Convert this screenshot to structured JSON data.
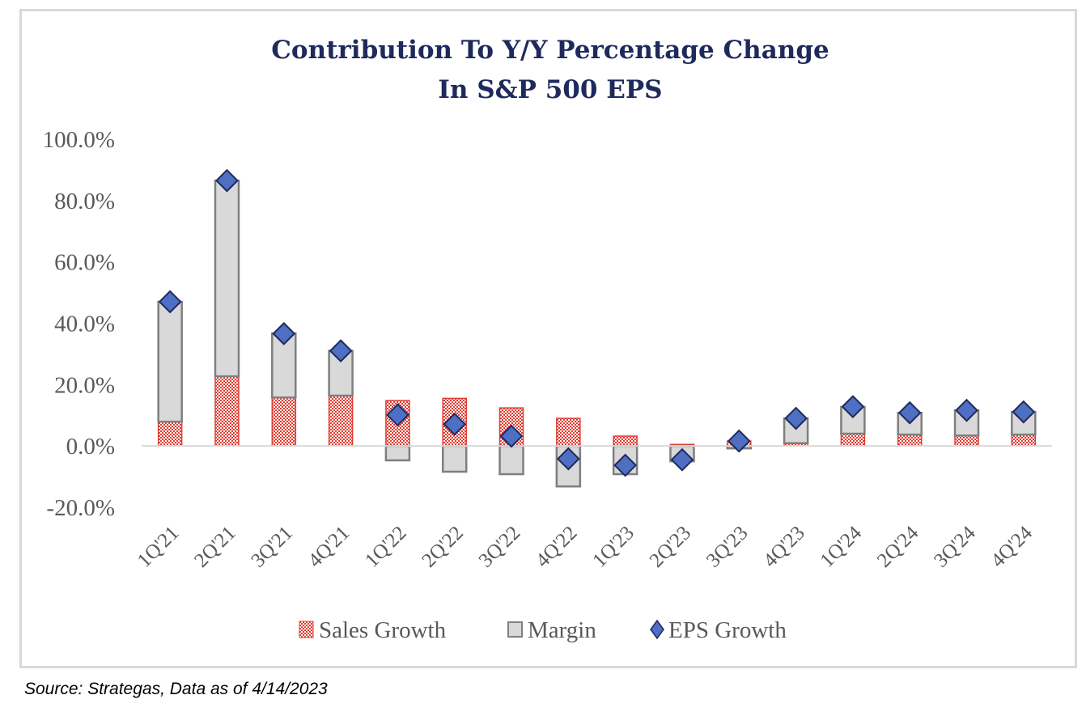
{
  "chart_data": {
    "type": "bar",
    "subtype": "stacked-bar-with-markers",
    "title": [
      "Contribution To Y/Y Percentage Change",
      "In S&P 500 EPS"
    ],
    "xlabel": "",
    "ylabel": "",
    "ylim": [
      -20,
      100
    ],
    "yticks": [
      -20,
      0,
      20,
      40,
      60,
      80,
      100
    ],
    "ytick_labels": [
      "-20.0%",
      "0.0%",
      "20.0%",
      "40.0%",
      "60.0%",
      "80.0%",
      "100.0%"
    ],
    "grid": false,
    "legend_position": "bottom",
    "categories": [
      "1Q'21",
      "2Q'21",
      "3Q'21",
      "4Q'21",
      "1Q'22",
      "2Q'22",
      "3Q'22",
      "4Q'22",
      "1Q'23",
      "2Q'23",
      "3Q'23",
      "4Q'23",
      "1Q'24",
      "2Q'24",
      "3Q'24",
      "4Q'24"
    ],
    "series": [
      {
        "name": "Sales Growth",
        "kind": "bar",
        "color": "#e03c31",
        "pattern": "checker",
        "values": [
          7.9,
          22.7,
          15.8,
          16.4,
          14.8,
          15.5,
          12.4,
          9.0,
          3.2,
          0.5,
          1.6,
          0.9,
          4.0,
          3.7,
          3.4,
          3.7
        ]
      },
      {
        "name": "Margin",
        "kind": "bar",
        "color": "#d9d9d9",
        "edge_color": "#7f7f7f",
        "values": [
          39.1,
          63.8,
          20.9,
          14.6,
          -4.7,
          -8.4,
          -9.2,
          -13.2,
          -9.2,
          -5.0,
          -0.8,
          8.1,
          8.7,
          7.1,
          8.2,
          7.4
        ]
      },
      {
        "name": "EPS Growth",
        "kind": "marker",
        "marker": "diamond",
        "color": "#4f6fc4",
        "edge_color": "#1f2a5c",
        "values": [
          47.0,
          86.5,
          36.6,
          31.0,
          10.1,
          7.1,
          3.2,
          -4.2,
          -6.3,
          -4.5,
          1.6,
          9.0,
          12.8,
          10.8,
          11.6,
          11.1
        ]
      }
    ]
  },
  "source_note": "Source: Strategas, Data as of 4/14/2023"
}
